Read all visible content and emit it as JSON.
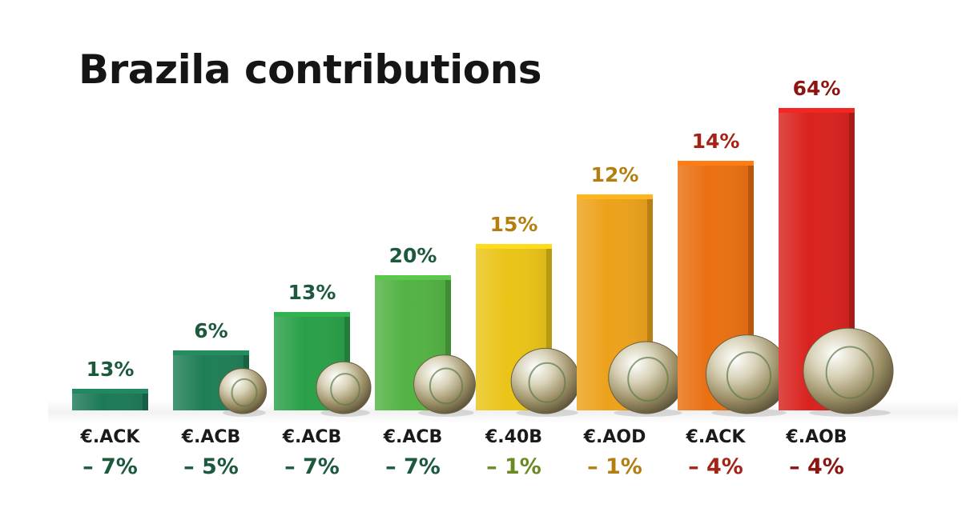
{
  "chart_data": {
    "type": "bar",
    "title": "Brazila contributions",
    "xlabel": "",
    "ylabel": "",
    "categories": [
      "€.ACK",
      "€.ACB",
      "€.ACB",
      "€.ACB",
      "€.40B",
      "€.AOD",
      "€.ACK",
      "€.AOB"
    ],
    "value_labels": [
      "13%",
      "6%",
      "13%",
      "20%",
      "15%",
      "12%",
      "14%",
      "64%"
    ],
    "changes": [
      "– 7%",
      "– 5%",
      "– 7%",
      "– 7%",
      "– 1%",
      "– 1%",
      "– 4%",
      "– 4%"
    ],
    "colors": [
      "#1d7a57",
      "#1f7e55",
      "#2aa048",
      "#52b343",
      "#eac417",
      "#eda21b",
      "#ea7012",
      "#d9221e"
    ],
    "label_colors": [
      "#1b5a3c",
      "#1b5a3c",
      "#1b5a3c",
      "#1b5a3c",
      "#b57e10",
      "#b57e10",
      "#a52315",
      "#8e1411"
    ],
    "change_colors": [
      "#1b5a3c",
      "#1b5a3c",
      "#1b5a3c",
      "#1b5a3c",
      "#6b8a22",
      "#b57e10",
      "#a52315",
      "#8e1411"
    ],
    "has_coin": [
      false,
      true,
      true,
      true,
      true,
      true,
      true,
      true
    ],
    "grid": false,
    "legend": "none"
  }
}
